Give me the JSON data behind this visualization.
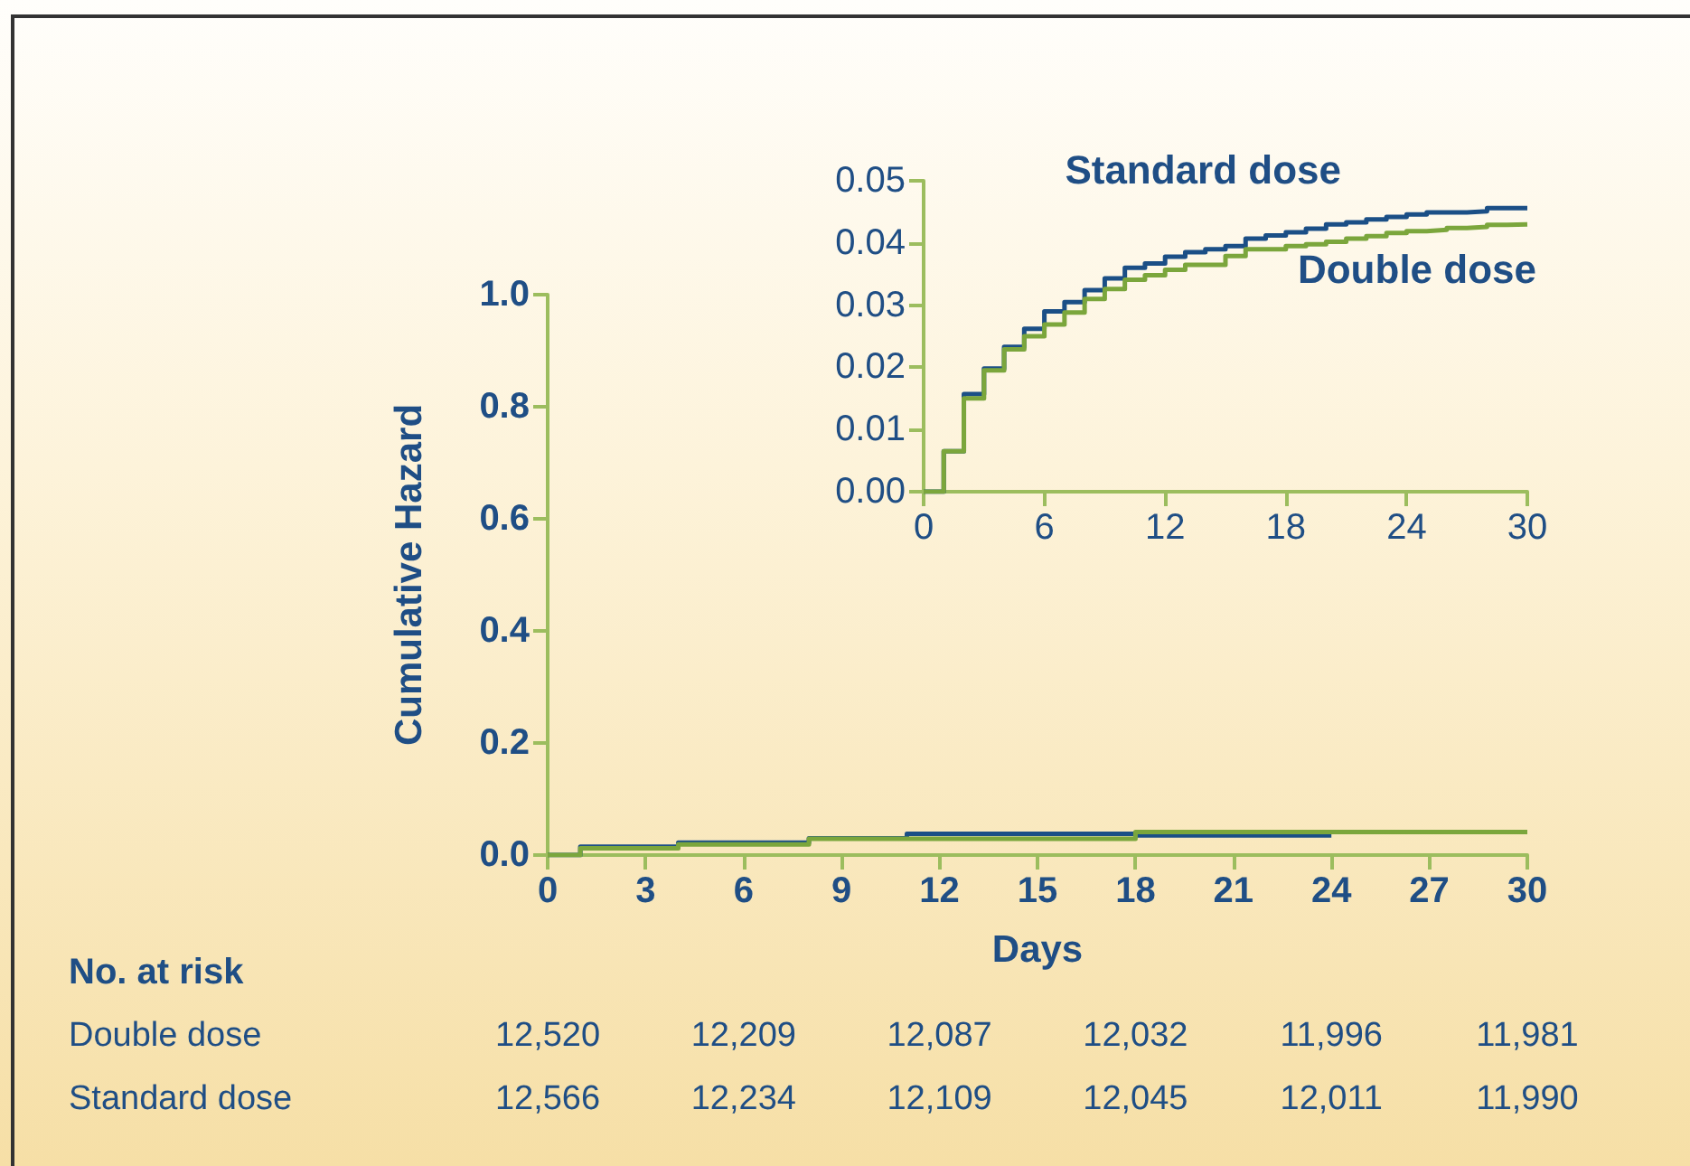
{
  "chart_data": [
    {
      "type": "step",
      "xlabel": "Days",
      "ylabel": "Cumulative Hazard",
      "xlim": [
        0,
        30
      ],
      "xticks": [
        0,
        3,
        6,
        9,
        12,
        15,
        18,
        21,
        24,
        27,
        30
      ],
      "ylim": [
        0,
        1
      ],
      "yticks": [
        {
          "value": 0,
          "label": "0.0"
        },
        {
          "value": 0.2,
          "label": "0.2"
        },
        {
          "value": 0.4,
          "label": "0.4"
        },
        {
          "value": 0.6,
          "label": "0.6"
        },
        {
          "value": 0.8,
          "label": "0.8"
        },
        {
          "value": 1,
          "label": "1.0"
        }
      ],
      "series": [
        {
          "color": "#1b4f86",
          "x": [
            0,
            1,
            4,
            8,
            11,
            18,
            24
          ],
          "values": [
            0,
            0.015,
            0.022,
            0.03,
            0.038,
            0.035,
            0.035
          ]
        },
        {
          "color": "#7ba63c",
          "x": [
            0,
            1,
            4,
            8,
            18,
            30
          ],
          "values": [
            0,
            0.012,
            0.019,
            0.029,
            0.041,
            0.041
          ]
        }
      ],
      "annotations": [
        "No. at risk",
        "Double dose",
        "12,520",
        "12,209",
        "12,087",
        "12,032",
        "11,996",
        "11,981",
        "Standard dose",
        "12,566",
        "12,234",
        "12,109",
        "12,045",
        "12,011",
        "11,990"
      ]
    },
    {
      "type": "step",
      "xlim": [
        0,
        30
      ],
      "xticks": [
        0,
        6,
        12,
        18,
        24,
        30
      ],
      "ylim": [
        0,
        0.05
      ],
      "yticks": [
        {
          "value": 0,
          "label": "0.00"
        },
        {
          "value": 0.01,
          "label": "0.01"
        },
        {
          "value": 0.02,
          "label": "0.02"
        },
        {
          "value": 0.03,
          "label": "0.03"
        },
        {
          "value": 0.04,
          "label": "0.04"
        },
        {
          "value": 0.05,
          "label": "0.05"
        }
      ],
      "series": [
        {
          "name": "Standard dose",
          "color": "#1b4f86",
          "x": [
            0,
            1,
            2,
            3,
            4,
            5,
            6,
            7,
            8,
            9,
            10,
            11,
            12,
            13,
            14,
            15,
            16,
            17,
            18,
            19,
            20,
            21,
            22,
            23,
            24,
            25,
            27,
            28,
            30
          ],
          "values": [
            0,
            0.0065,
            0.0157,
            0.0198,
            0.0233,
            0.0262,
            0.029,
            0.0305,
            0.0324,
            0.0343,
            0.036,
            0.0367,
            0.0378,
            0.0385,
            0.039,
            0.0395,
            0.0407,
            0.0412,
            0.0417,
            0.0423,
            0.043,
            0.0433,
            0.0438,
            0.0442,
            0.0446,
            0.0449,
            0.0451,
            0.0456,
            0.0456
          ]
        },
        {
          "name": "Double dose",
          "color": "#7ba63c",
          "x": [
            0,
            1,
            2,
            3,
            4,
            5,
            6,
            7,
            8,
            9,
            10,
            11,
            12,
            13,
            15,
            16,
            18,
            19,
            20,
            21,
            22,
            23,
            24,
            25,
            26,
            27,
            28,
            29,
            30
          ],
          "values": [
            0,
            0.0065,
            0.015,
            0.0195,
            0.0229,
            0.025,
            0.0269,
            0.0288,
            0.031,
            0.0326,
            0.0341,
            0.0348,
            0.0357,
            0.0365,
            0.0379,
            0.039,
            0.0395,
            0.0398,
            0.0402,
            0.0407,
            0.0411,
            0.0416,
            0.0419,
            0.0421,
            0.0424,
            0.0426,
            0.0429,
            0.043,
            0.043
          ]
        }
      ]
    }
  ]
}
